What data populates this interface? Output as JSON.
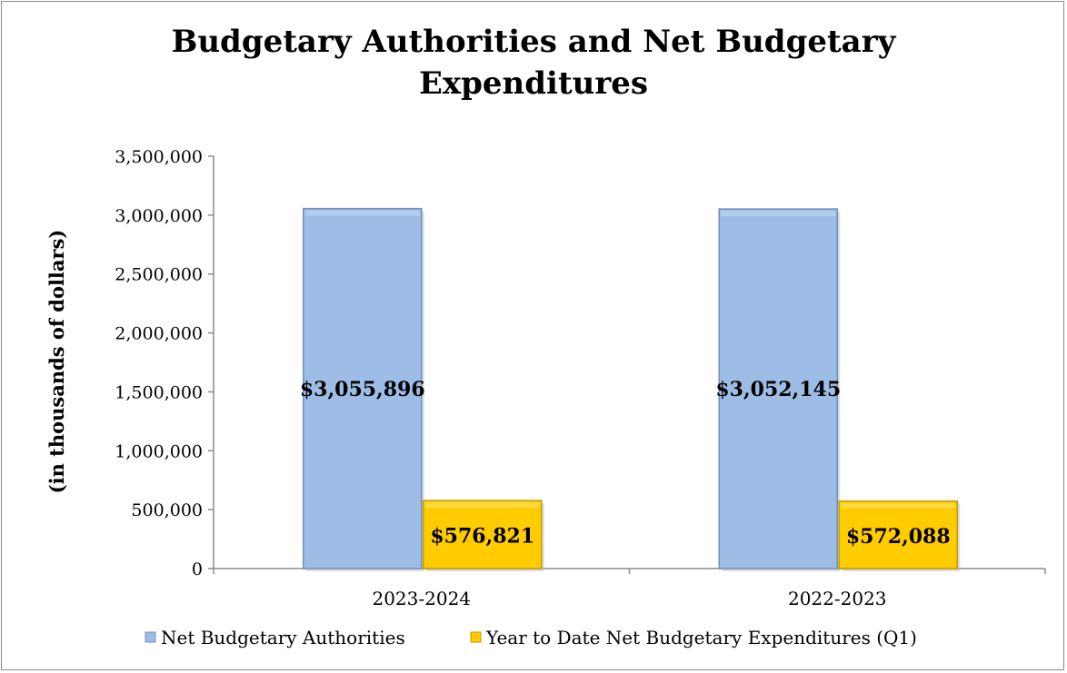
{
  "chart_data": {
    "type": "bar",
    "title_lines": [
      "Budgetary Authorities and Net Budgetary",
      "Expenditures"
    ],
    "xlabel": "",
    "ylabel": "(in thousands of dollars)",
    "ylim": [
      0,
      3500000
    ],
    "yticks": [
      0,
      500000,
      1000000,
      1500000,
      2000000,
      2500000,
      3000000,
      3500000
    ],
    "ytick_labels": [
      "0",
      "500,000",
      "1,000,000",
      "1,500,000",
      "2,000,000",
      "2,500,000",
      "3,000,000",
      "3,500,000"
    ],
    "categories": [
      "2023-2024",
      "2022-2023"
    ],
    "series": [
      {
        "name": "Net Budgetary Authorities",
        "values": [
          3055896,
          3052145
        ],
        "labels": [
          "$3,055,896",
          "$3,052,145"
        ],
        "color": "#9dbde6",
        "edge": "#6f8fbd"
      },
      {
        "name": "Year to Date Net Budgetary Expenditures (Q1)",
        "values": [
          576821,
          572088
        ],
        "labels": [
          "$576,821",
          "$572,088"
        ],
        "color": "#ffcc00",
        "edge": "#c49a00"
      }
    ],
    "grid": false,
    "legend_position": "bottom"
  }
}
